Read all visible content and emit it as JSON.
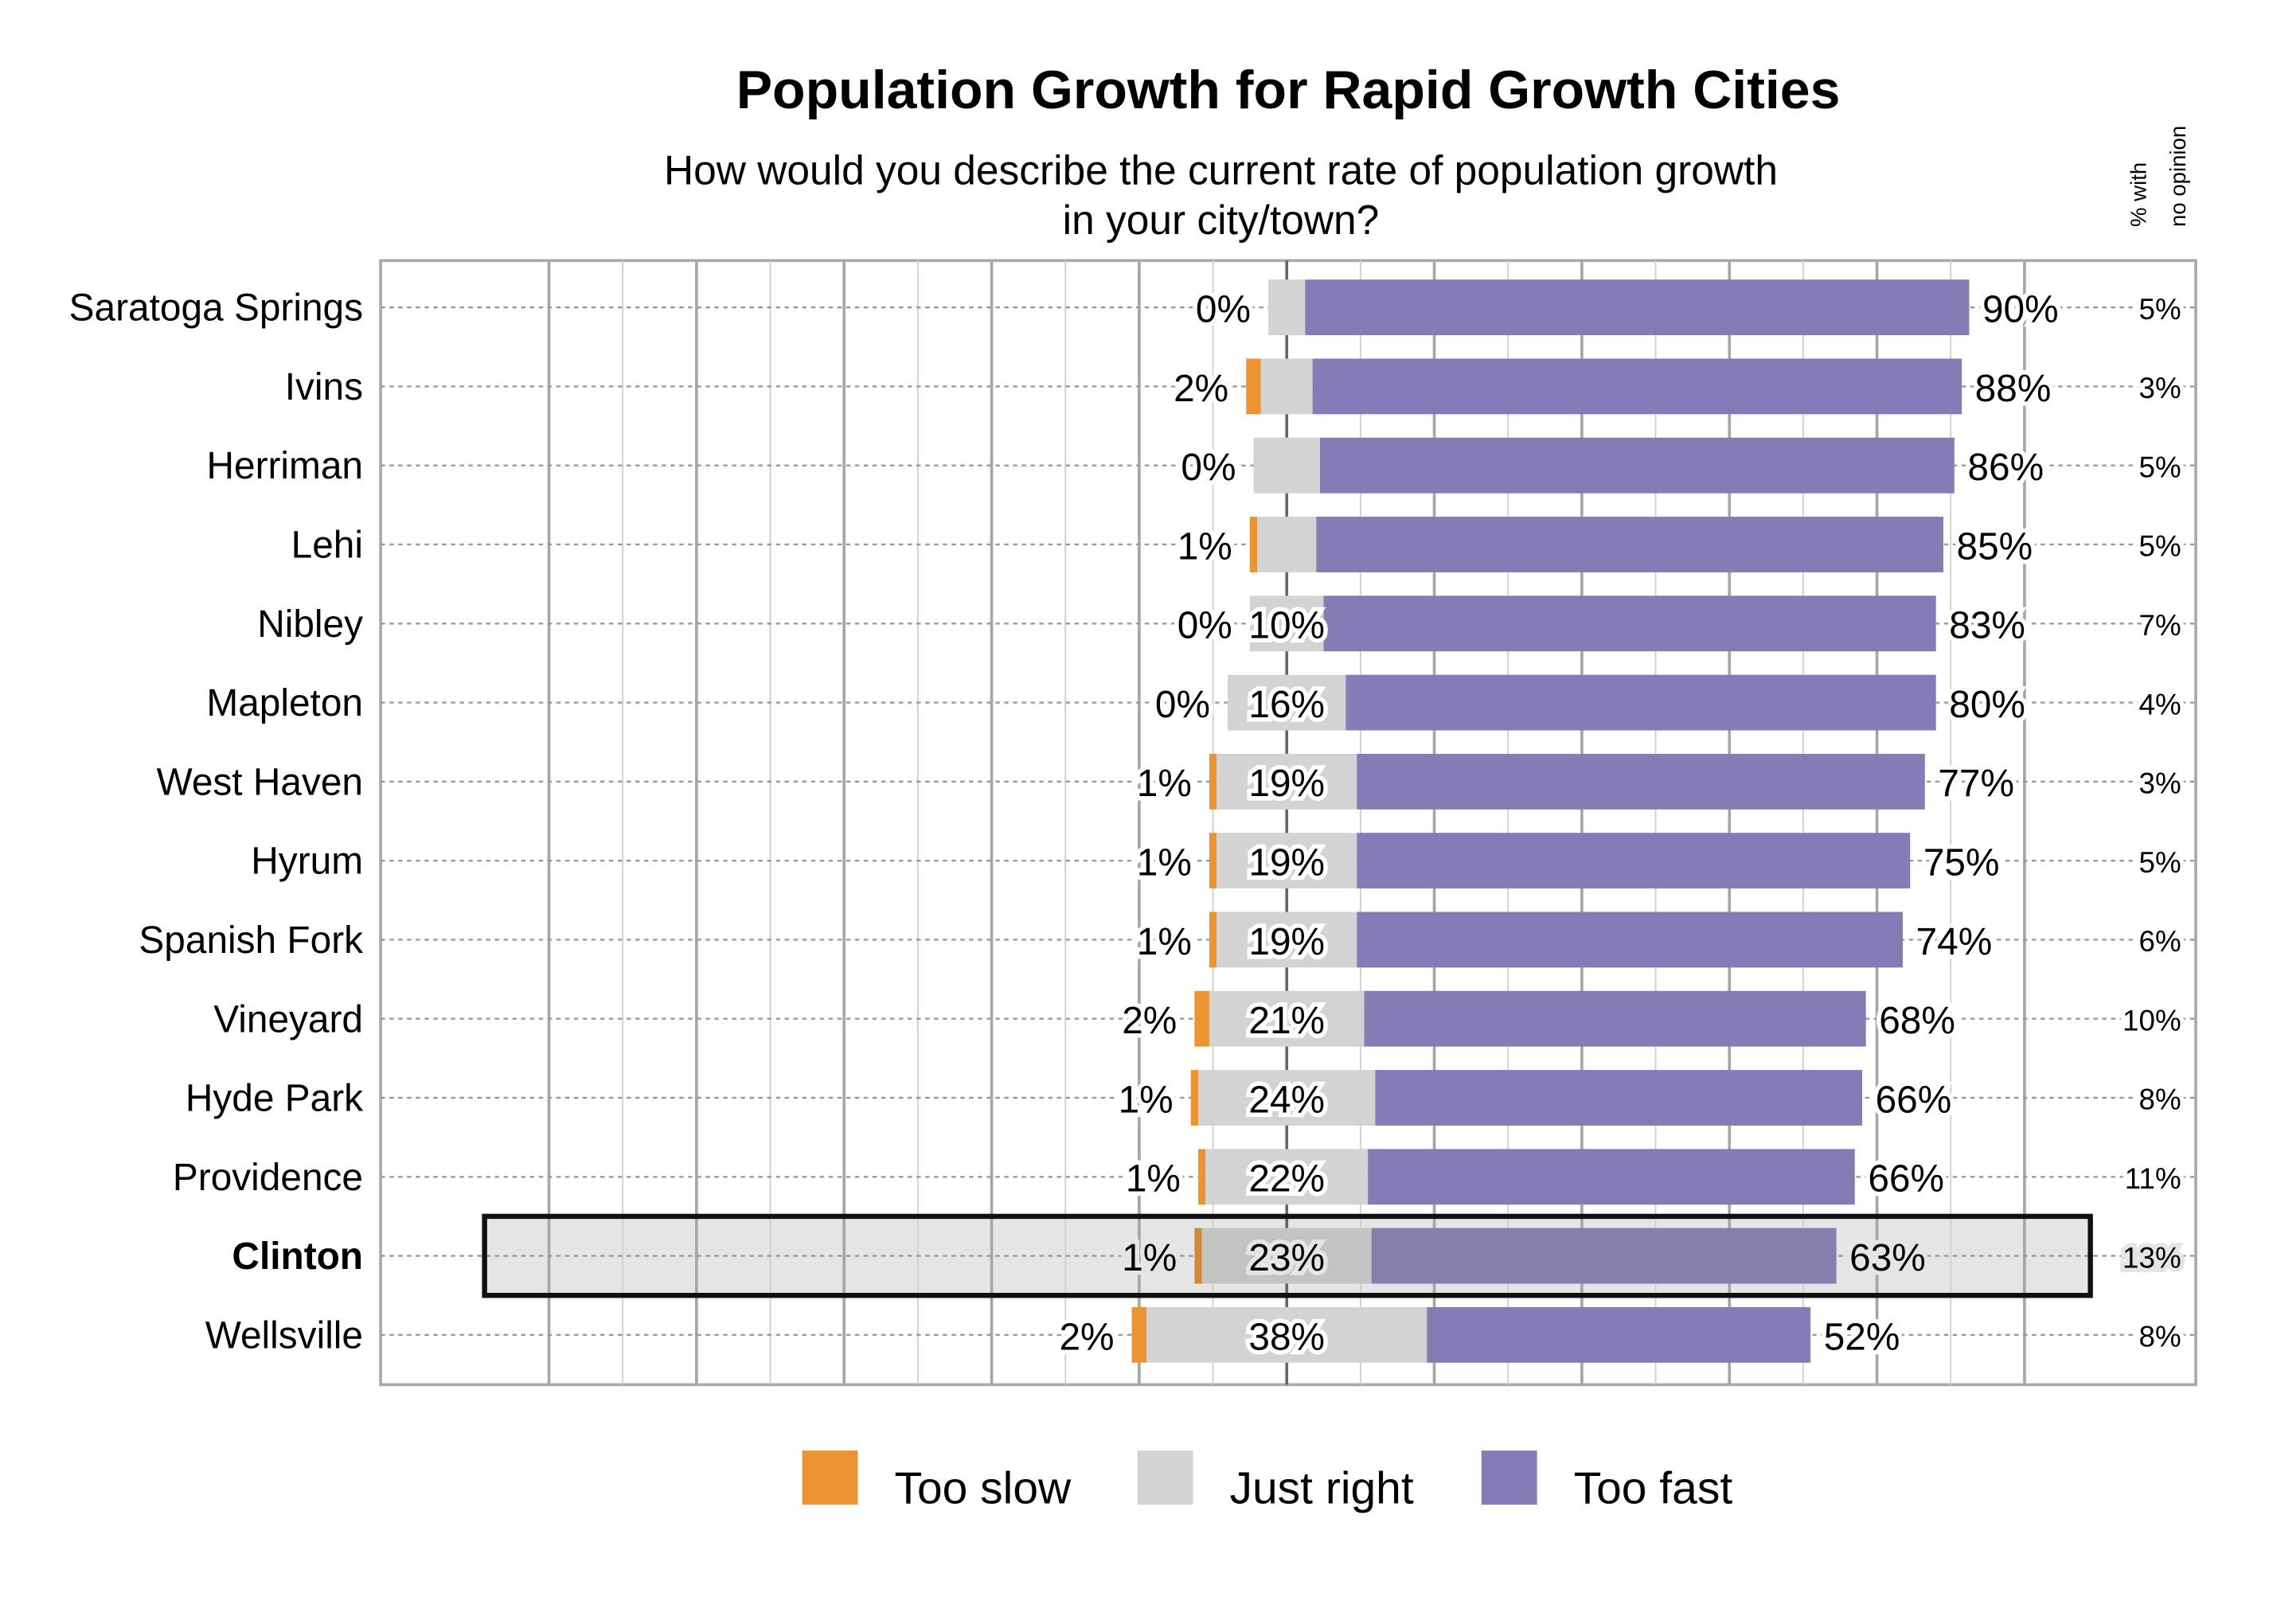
{
  "chart_data": {
    "type": "bar",
    "orientation": "horizontal-diverging-stacked",
    "title": "Population Growth for Rapid Growth Cities",
    "subtitle_line1": "How would you describe the current rate of population growth",
    "subtitle_line2": "in your city/town?",
    "side_header_line1": "% with",
    "side_header_line2": "no opinion",
    "categories": [
      "Saratoga Springs",
      "Ivins",
      "Herriman",
      "Lehi",
      "Nibley",
      "Mapleton",
      "West Haven",
      "Hyrum",
      "Spanish Fork",
      "Vineyard",
      "Hyde Park",
      "Providence",
      "Clinton",
      "Wellsville"
    ],
    "highlighted_category": "Clinton",
    "series": [
      {
        "name": "Too slow",
        "color": "#ec9433",
        "values": [
          0,
          2,
          0,
          1,
          0,
          0,
          1,
          1,
          1,
          2,
          1,
          1,
          1,
          2
        ]
      },
      {
        "name": "Just right",
        "color": "#d3d3d3",
        "values": [
          5,
          7,
          9,
          8,
          10,
          16,
          19,
          19,
          19,
          21,
          24,
          22,
          23,
          38
        ],
        "labels_shown": [
          false,
          false,
          false,
          false,
          true,
          true,
          true,
          true,
          true,
          true,
          true,
          true,
          true,
          true
        ]
      },
      {
        "name": "Too fast",
        "color": "#877bb5",
        "values": [
          90,
          88,
          86,
          85,
          83,
          80,
          77,
          75,
          74,
          68,
          66,
          66,
          63,
          52
        ]
      }
    ],
    "no_opinion": [
      5,
      3,
      5,
      5,
      7,
      4,
      3,
      5,
      6,
      10,
      8,
      11,
      13,
      8
    ],
    "value_suffix": "%",
    "grid": true,
    "legend_position": "bottom",
    "highlight_colors": {
      "Too slow": "#d08a3c",
      "Just right": "#c3c3c3",
      "Too fast": "#877ead",
      "background": "#e5e5e5"
    }
  }
}
